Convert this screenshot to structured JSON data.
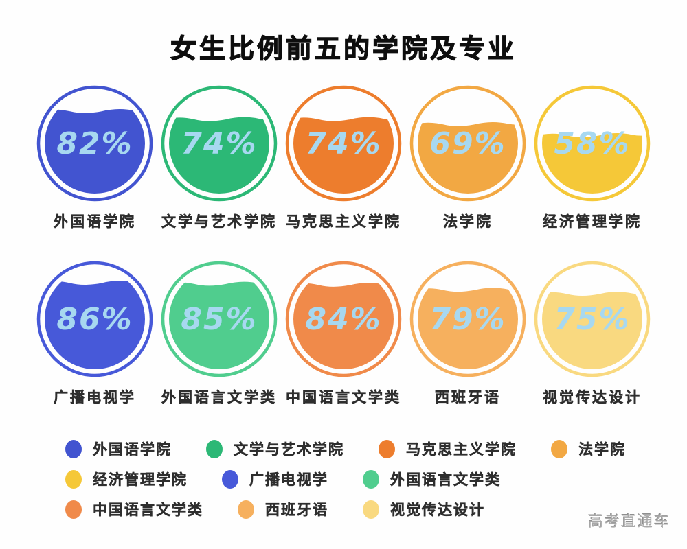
{
  "title": "女生比例前五的学院及专业",
  "watermark": "高考直通车",
  "colors": {
    "percent_text": "#a7d8f0",
    "label_text": "#2e2e2e",
    "title_text": "#0e0e0e"
  },
  "chart_data": {
    "type": "gauge",
    "variant": "liquid-fill-circles",
    "title": "女生比例前五的学院及专业",
    "unit": "%",
    "legend_position": "bottom",
    "rows": [
      [
        0,
        1,
        2,
        3,
        4
      ],
      [
        5,
        6,
        7,
        8,
        9
      ]
    ],
    "items": [
      {
        "name": "外国语学院",
        "value": 82,
        "label": "82%",
        "color": "#4254d0"
      },
      {
        "name": "文学与艺术学院",
        "value": 74,
        "label": "74%",
        "color": "#2cb876"
      },
      {
        "name": "马克思主义学院",
        "value": 74,
        "label": "74%",
        "color": "#ed7d2d"
      },
      {
        "name": "法学院",
        "value": 69,
        "label": "69%",
        "color": "#f2a843"
      },
      {
        "name": "经济管理学院",
        "value": 58,
        "label": "58%",
        "color": "#f5c838"
      },
      {
        "name": "广播电视学",
        "value": 86,
        "label": "86%",
        "color": "#4759d9"
      },
      {
        "name": "外国语言文学类",
        "value": 85,
        "label": "85%",
        "color": "#50cd8e"
      },
      {
        "name": "中国语言文学类",
        "value": 84,
        "label": "84%",
        "color": "#f08a4a"
      },
      {
        "name": "西班牙语",
        "value": 79,
        "label": "79%",
        "color": "#f6b05e"
      },
      {
        "name": "视觉传达设计",
        "value": 75,
        "label": "75%",
        "color": "#f9d980"
      }
    ]
  }
}
